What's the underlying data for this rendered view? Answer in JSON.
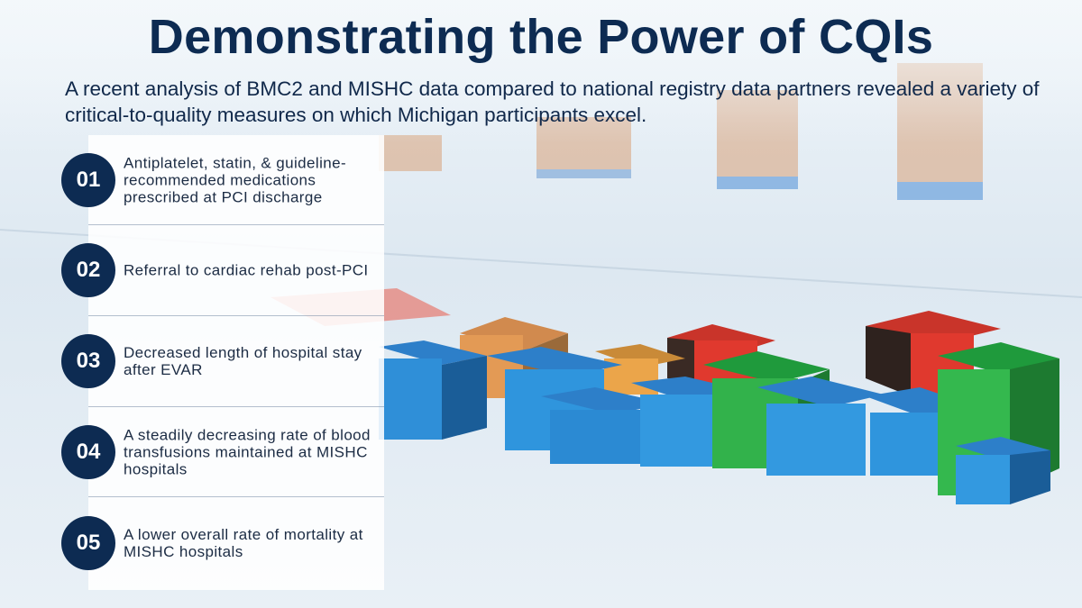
{
  "header": {
    "title": "Demonstrating the Power of CQIs",
    "subtitle": "A recent analysis of BMC2 and MISHC data compared to national registry data partners revealed a variety of critical-to-quality measures on which Michigan participants excel."
  },
  "items": [
    {
      "number": "01",
      "text": "Antiplatelet, statin, & guideline-recommended medications prescribed at PCI discharge"
    },
    {
      "number": "02",
      "text": "Referral to cardiac rehab post-PCI"
    },
    {
      "number": "03",
      "text": "Decreased length of hospital stay after EVAR"
    },
    {
      "number": "04",
      "text": "A steadily decreasing rate of blood transfusions maintained at MISHC hospitals"
    },
    {
      "number": "05",
      "text": "A lower overall rate of mortality at MISHC hospitals"
    }
  ]
}
